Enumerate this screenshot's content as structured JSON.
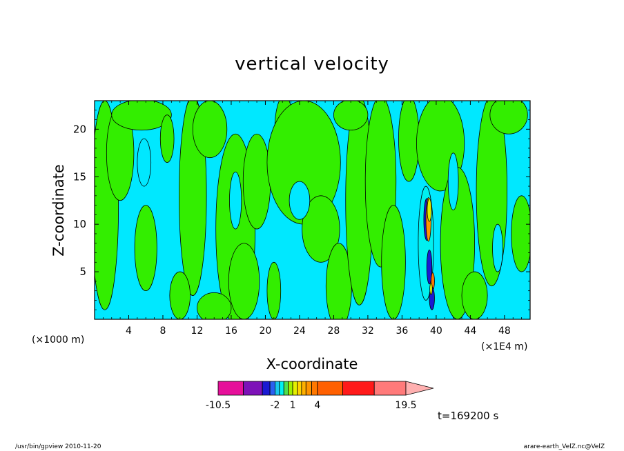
{
  "chart_data": {
    "type": "heatmap",
    "title": "vertical velocity",
    "xlabel": "X-coordinate",
    "ylabel": "Z-coordinate",
    "x_unit": "(×1000 m)",
    "x_unit_right": "(×1E4 m)",
    "xlim": [
      0,
      51
    ],
    "ylim": [
      0,
      23
    ],
    "x_ticks": [
      4,
      8,
      12,
      16,
      20,
      24,
      28,
      32,
      36,
      40,
      44,
      48
    ],
    "y_ticks": [
      5,
      10,
      15,
      20
    ],
    "colorbar": {
      "levels": [
        -10.5,
        -7.5,
        -4.5,
        -3,
        -2,
        -1,
        0,
        0.5,
        1,
        1.5,
        2,
        2.5,
        3,
        4,
        7.5,
        11.5,
        15.5,
        19.5
      ],
      "colors": [
        "#e6109a",
        "#7d12b8",
        "#1a1ad2",
        "#2a60f0",
        "#19c8ee",
        "#00f0f0",
        "#4ee04e",
        "#9ff000",
        "#e4f000",
        "#ffd400",
        "#ffb000",
        "#ff9400",
        "#ff7800",
        "#ff6000",
        "#ff1a1a",
        "#ff7a7a",
        "#ffb0b0"
      ],
      "tick_labels": [
        "-10.5",
        "-2",
        "1",
        "4",
        "19.5"
      ]
    },
    "colors": {
      "cyan": "#00e8ff",
      "green": "#33ee00",
      "line": "#000000"
    },
    "grid": false
  },
  "timestamp": "t=169200 s",
  "footer_left": "/usr/bin/gpview   2010-11-20",
  "footer_right": "arare-earth_VelZ.nc@VelZ"
}
